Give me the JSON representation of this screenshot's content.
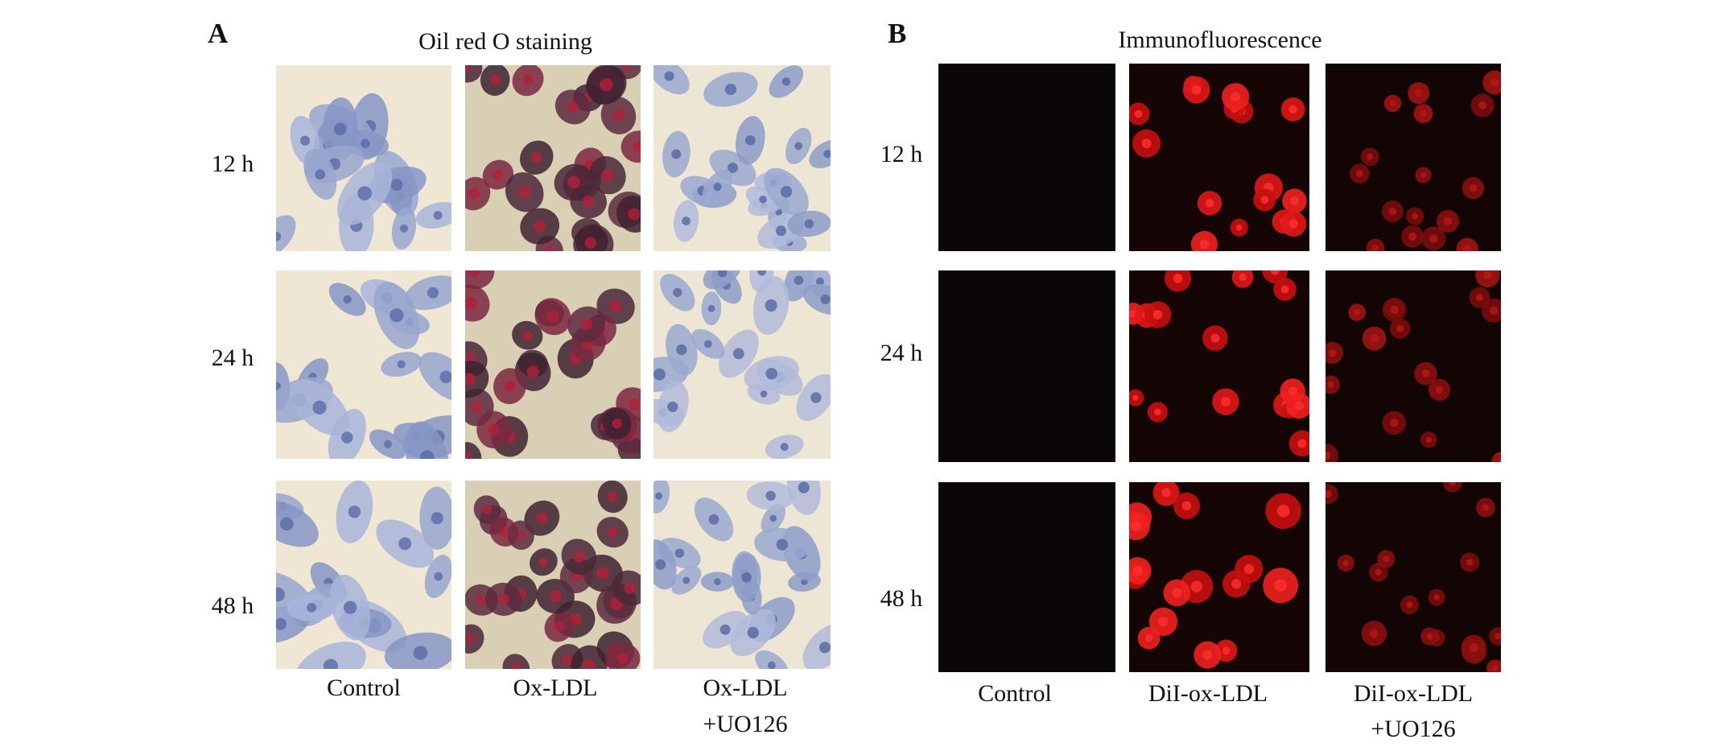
{
  "panel_a": {
    "label": "A",
    "title": "Oil red O staining",
    "row_labels": [
      "12 h",
      "24 h",
      "48 h"
    ],
    "column_labels": [
      [
        "Control"
      ],
      [
        "Ox-LDL"
      ],
      [
        "Ox-LDL",
        "+UO126"
      ]
    ]
  },
  "panel_b": {
    "label": "B",
    "title": "Immunofluorescence",
    "row_labels": [
      "12 h",
      "24 h",
      "48 h"
    ],
    "column_labels": [
      [
        "Control"
      ],
      [
        "DiI-ox-LDL"
      ],
      [
        "DiI-ox-LDL",
        "+UO126"
      ]
    ]
  }
}
